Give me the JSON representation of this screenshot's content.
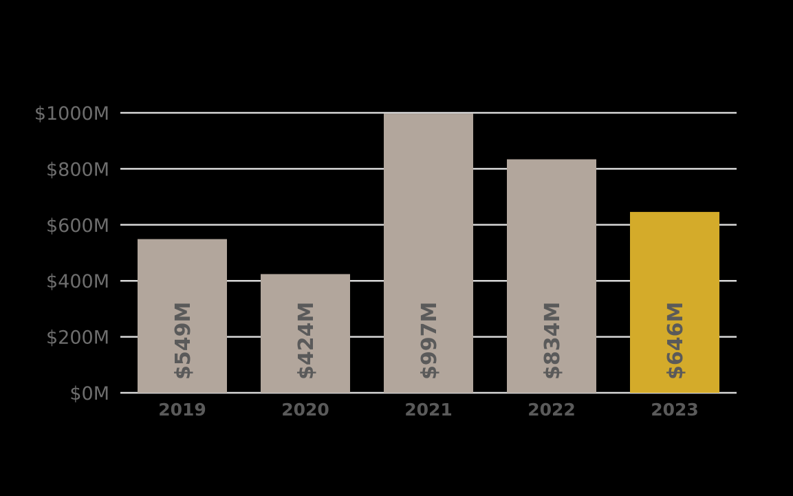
{
  "chart_data": {
    "type": "bar",
    "categories": [
      "2019",
      "2020",
      "2021",
      "2022",
      "2023"
    ],
    "values": [
      549,
      424,
      997,
      834,
      646
    ],
    "data_labels": [
      "$549M",
      "$424M",
      "$997M",
      "$834M",
      "$646M"
    ],
    "y_ticks": [
      0,
      200,
      400,
      600,
      800,
      1000
    ],
    "y_tick_labels": [
      "$0M",
      "$200M",
      "$400M",
      "$600M",
      "$800M",
      "$1000M"
    ],
    "ylim": [
      0,
      1000
    ],
    "grid": true,
    "bar_color": "#b2a69c",
    "highlight_color": "#d4ab2a",
    "highlight_index": 4,
    "gridline_color": "#d9d9d9",
    "background_color": "#000000"
  }
}
